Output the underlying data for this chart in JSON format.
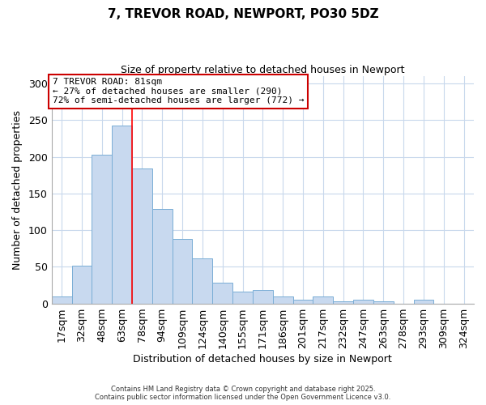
{
  "title": "7, TREVOR ROAD, NEWPORT, PO30 5DZ",
  "subtitle": "Size of property relative to detached houses in Newport",
  "xlabel": "Distribution of detached houses by size in Newport",
  "ylabel": "Number of detached properties",
  "bar_labels": [
    "17sqm",
    "32sqm",
    "48sqm",
    "63sqm",
    "78sqm",
    "94sqm",
    "109sqm",
    "124sqm",
    "140sqm",
    "155sqm",
    "171sqm",
    "186sqm",
    "201sqm",
    "217sqm",
    "232sqm",
    "247sqm",
    "263sqm",
    "278sqm",
    "293sqm",
    "309sqm",
    "324sqm"
  ],
  "bar_values": [
    10,
    52,
    203,
    243,
    184,
    129,
    88,
    62,
    28,
    16,
    19,
    10,
    5,
    10,
    3,
    5,
    3,
    0,
    5,
    0,
    0
  ],
  "bar_color": "#c8d9ef",
  "bar_edge_color": "#7aaed6",
  "vline_x_index": 4,
  "vline_color": "red",
  "ylim": [
    0,
    310
  ],
  "yticks": [
    0,
    50,
    100,
    150,
    200,
    250,
    300
  ],
  "annotation_title": "7 TREVOR ROAD: 81sqm",
  "annotation_line1": "← 27% of detached houses are smaller (290)",
  "annotation_line2": "72% of semi-detached houses are larger (772) →",
  "annotation_box_color": "#ffffff",
  "annotation_box_edge": "#cc0000",
  "footnote1": "Contains HM Land Registry data © Crown copyright and database right 2025.",
  "footnote2": "Contains public sector information licensed under the Open Government Licence v3.0.",
  "background_color": "#ffffff",
  "grid_color": "#c8d8ec"
}
